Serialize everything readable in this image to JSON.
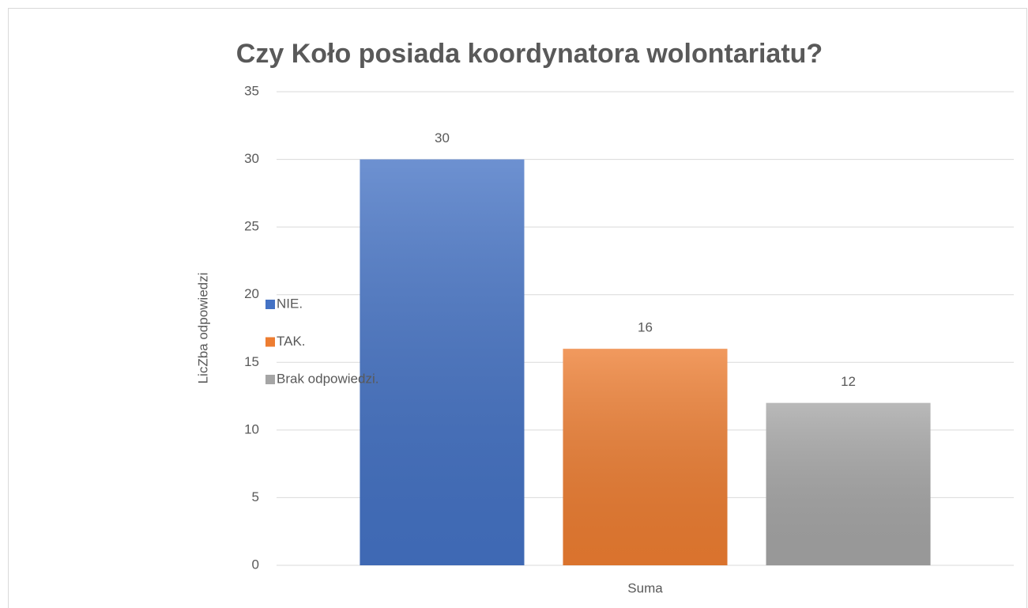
{
  "chart_data": {
    "type": "bar",
    "title": "Czy Koło posiada koordynatora wolontariatu?",
    "ylabel": "LicZba odpowiedzi",
    "categories": [
      "Suma"
    ],
    "series": [
      {
        "name": "NIE.",
        "color": "#4472c4",
        "values": [
          30
        ]
      },
      {
        "name": "TAK.",
        "color": "#ed7d31",
        "values": [
          16
        ]
      },
      {
        "name": "Brak odpowiedzi.",
        "color": "#a5a5a5",
        "values": [
          12
        ]
      }
    ],
    "ylim": [
      0,
      35
    ],
    "yticks": [
      0,
      5,
      10,
      15,
      20,
      25,
      30,
      35
    ],
    "grid": true,
    "legend": "left"
  }
}
